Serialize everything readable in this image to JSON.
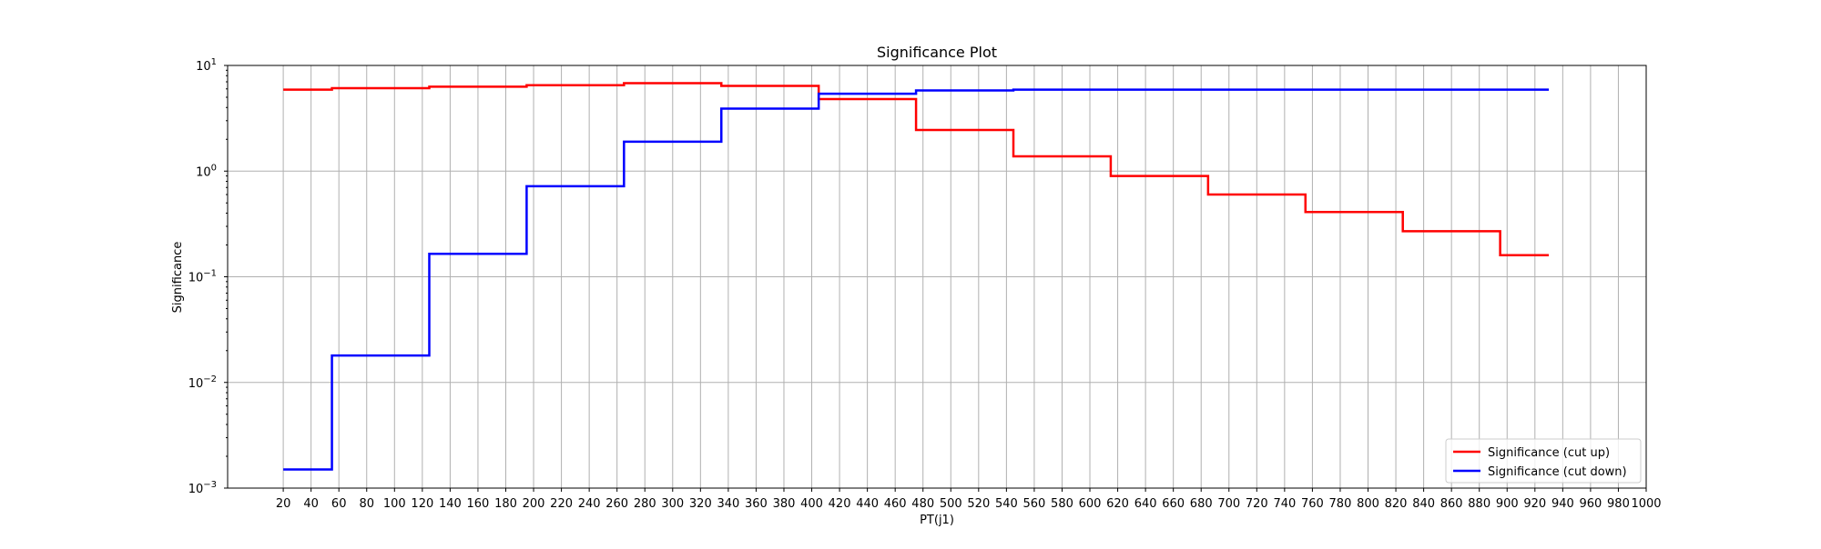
{
  "chart_data": {
    "type": "line",
    "title": "Significance Plot",
    "xlabel": "PT(j1)",
    "ylabel": "Significance",
    "xlim": [
      -20,
      1000
    ],
    "ylim": [
      0.001,
      10
    ],
    "yscale": "log",
    "grid": true,
    "legend_position": "bottom-right",
    "x_ticks": [
      20,
      40,
      60,
      80,
      100,
      120,
      140,
      160,
      180,
      200,
      220,
      240,
      260,
      280,
      300,
      320,
      340,
      360,
      380,
      400,
      420,
      440,
      460,
      480,
      500,
      520,
      540,
      560,
      580,
      600,
      620,
      640,
      660,
      680,
      700,
      720,
      740,
      760,
      780,
      800,
      820,
      840,
      860,
      880,
      900,
      920,
      940,
      960,
      980,
      1000
    ],
    "y_ticks": [
      {
        "value": 0.001,
        "base": "10",
        "exp": "−3"
      },
      {
        "value": 0.01,
        "base": "10",
        "exp": "−2"
      },
      {
        "value": 0.1,
        "base": "10",
        "exp": "−1"
      },
      {
        "value": 1,
        "base": "10",
        "exp": "0"
      },
      {
        "value": 10,
        "base": "10",
        "exp": "1"
      }
    ],
    "series": [
      {
        "name": "Significance (cut up)",
        "color": "#ff0000",
        "step": "post",
        "x": [
          20,
          55,
          125,
          195,
          265,
          335,
          405,
          475,
          545,
          615,
          685,
          755,
          825,
          895,
          930
        ],
        "y": [
          5.9,
          6.1,
          6.3,
          6.5,
          6.8,
          6.4,
          4.8,
          2.45,
          1.38,
          0.9,
          0.6,
          0.41,
          0.27,
          0.16,
          0.16
        ]
      },
      {
        "name": "Significance (cut down)",
        "color": "#0000ff",
        "step": "post",
        "x": [
          20,
          55,
          125,
          195,
          265,
          335,
          405,
          475,
          545,
          615,
          685,
          755,
          825,
          895,
          930
        ],
        "y": [
          0.0015,
          0.018,
          0.165,
          0.72,
          1.9,
          3.9,
          5.4,
          5.8,
          5.9,
          5.9,
          5.9,
          5.9,
          5.9,
          5.9,
          5.9
        ]
      }
    ]
  }
}
